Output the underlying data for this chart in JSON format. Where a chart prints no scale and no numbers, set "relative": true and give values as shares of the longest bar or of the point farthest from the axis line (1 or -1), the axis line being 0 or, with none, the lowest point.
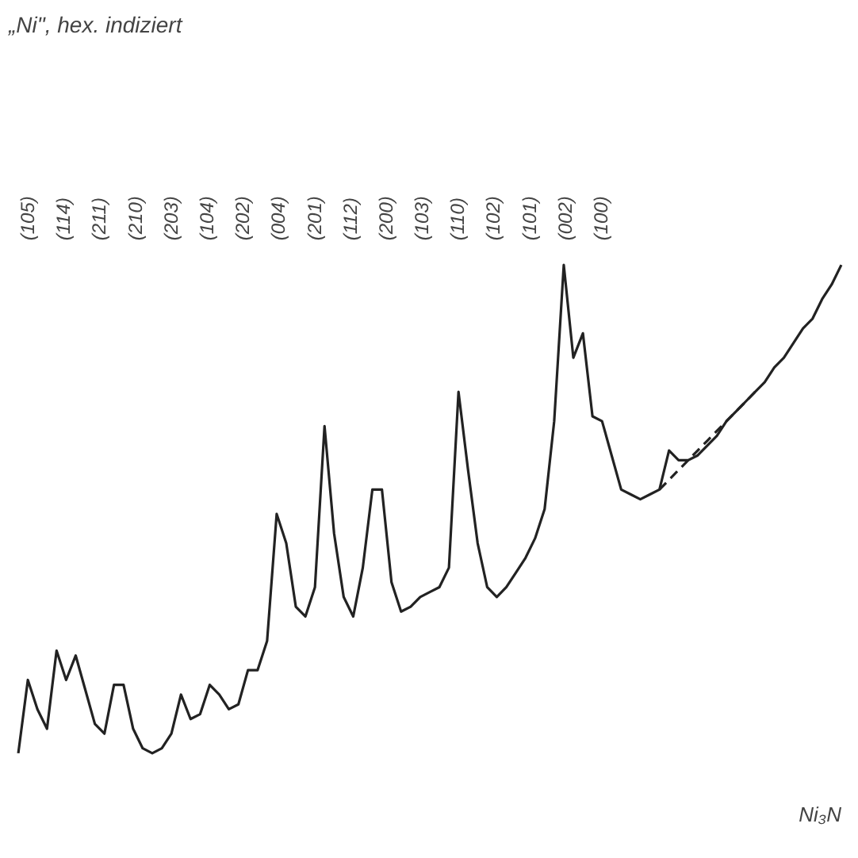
{
  "chart_data": {
    "type": "line",
    "title": "„Ni\", hex. indiziert",
    "relative": true,
    "categories": [
      null,
      null,
      null,
      null,
      null,
      null,
      null,
      null,
      null,
      null,
      null,
      null,
      null,
      null,
      null,
      null,
      null,
      null,
      null,
      null,
      null,
      null,
      null,
      null,
      null,
      null,
      null,
      null,
      null,
      null,
      null,
      null,
      null,
      null,
      null,
      null,
      null,
      null,
      null,
      null,
      null,
      null,
      null,
      null,
      null,
      null,
      null,
      null,
      null,
      null,
      null,
      null,
      null,
      null,
      null,
      null,
      null,
      null,
      null,
      null,
      null,
      null,
      null,
      null,
      null,
      null,
      null,
      null,
      null,
      null,
      null,
      null,
      null,
      null,
      null,
      null,
      null,
      null,
      null,
      null,
      null,
      null,
      null,
      null,
      null,
      null,
      null
    ],
    "series": [
      {
        "color": "#222222",
        "line_style": "solid",
        "values": [
          0,
          0.15,
          0.09,
          0.05,
          0.21,
          0.15,
          0.2,
          0.13,
          0.06,
          0.04,
          0.14,
          0.14,
          0.05,
          0.01,
          0,
          0.01,
          0.04,
          0.12,
          0.07,
          0.08,
          0.14,
          0.12,
          0.09,
          0.1,
          0.17,
          0.17,
          0.23,
          0.49,
          0.43,
          0.3,
          0.28,
          0.34,
          0.67,
          0.45,
          0.32,
          0.28,
          0.38,
          0.54,
          0.54,
          0.35,
          0.29,
          0.3,
          0.32,
          0.33,
          0.34,
          0.38,
          0.74,
          0.58,
          0.43,
          0.34,
          0.32,
          0.34,
          0.37,
          0.4,
          0.44,
          0.5,
          0.68,
          1,
          0.81,
          0.86,
          0.69,
          0.68,
          0.61,
          0.54,
          0.53,
          0.52,
          0.53,
          0.54,
          0.62,
          0.6,
          0.6,
          0.61,
          0.63,
          0.65,
          0.68,
          0.7,
          0.72,
          0.74,
          0.76,
          0.79,
          0.81,
          0.84,
          0.87,
          0.89,
          0.93,
          0.96,
          1
        ]
      },
      {
        "color": "#222222",
        "line_style": "dashed",
        "values": [
          null,
          null,
          null,
          null,
          null,
          null,
          null,
          null,
          null,
          null,
          null,
          null,
          null,
          null,
          null,
          null,
          null,
          null,
          null,
          null,
          null,
          null,
          null,
          null,
          null,
          null,
          null,
          null,
          null,
          null,
          null,
          null,
          null,
          null,
          null,
          null,
          null,
          null,
          null,
          null,
          null,
          null,
          null,
          null,
          null,
          null,
          null,
          null,
          null,
          null,
          null,
          null,
          null,
          null,
          null,
          null,
          null,
          null,
          null,
          null,
          null,
          null,
          null,
          null,
          null,
          null,
          null,
          0.54,
          0.56,
          0.58,
          0.6,
          0.62,
          0.64,
          0.66,
          0.68,
          0.7,
          0.72,
          0.74,
          null,
          null,
          null,
          null,
          null,
          null,
          null,
          null,
          null
        ]
      }
    ],
    "annotations": [
      "(105)",
      "(114)",
      "(211)",
      "(210)",
      "(203)",
      "(104)",
      "(202)",
      "(004)",
      "(201)",
      "(112)",
      "(200)",
      "(103)",
      "(110)",
      "(102)",
      "(101)",
      "(002)",
      "(100)",
      "Ni₃N"
    ],
    "grid": false
  }
}
